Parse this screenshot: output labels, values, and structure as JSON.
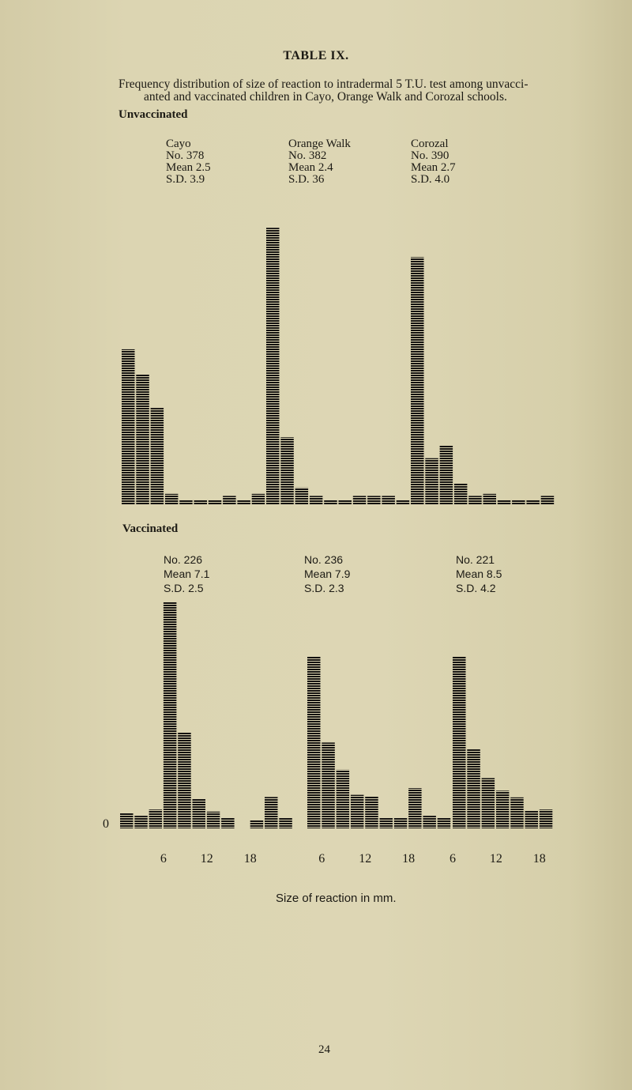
{
  "title": "TABLE IX.",
  "caption": {
    "line1": "Frequency distribution of size of reaction to intradermal 5 T.U. test among unvacci-",
    "line2": "anted and vaccinated children in Cayo, Orange Walk and Corozal schools."
  },
  "sections": {
    "unvaccinated": "Unvaccinated",
    "vaccinated": "Vaccinated"
  },
  "unvaccinated_panels": [
    {
      "name": "Cayo",
      "no": "No. 378",
      "mean": "Mean 2.5",
      "sd": "S.D. 3.9"
    },
    {
      "name": "Orange Walk",
      "no": "No. 382",
      "mean": "Mean 2.4",
      "sd": "S.D. 36"
    },
    {
      "name": "Corozal",
      "no": "No. 390",
      "mean": "Mean 2.7",
      "sd": "S.D. 4.0"
    }
  ],
  "vaccinated_panels": [
    {
      "no": "No. 226",
      "mean": "Mean 7.1",
      "sd": "S.D. 2.5"
    },
    {
      "no": "No. 236",
      "mean": "Mean 7.9",
      "sd": "S.D. 2.3"
    },
    {
      "no": "No. 221",
      "mean": "Mean 8.5",
      "sd": "S.D. 4.2"
    }
  ],
  "y_zero_label": "0",
  "tick_labels": [
    "6",
    "12",
    "18"
  ],
  "xlabel": "Size of reaction in mm.",
  "page_number": "24",
  "colors": {
    "bar": "#141210",
    "paper": "#dcd5b2"
  },
  "chart_data": [
    {
      "type": "bar",
      "group": "Unvaccinated",
      "panel": "Cayo",
      "bin_width_mm": 2,
      "bin_start_mm": [
        0,
        2,
        4,
        6,
        8,
        10,
        12,
        14,
        16,
        18
      ],
      "values_pct": [
        37,
        31,
        23,
        2.5,
        1,
        1,
        1,
        2,
        1,
        2.5
      ],
      "ticks": []
    },
    {
      "type": "bar",
      "group": "Unvaccinated",
      "panel": "Orange Walk",
      "bin_width_mm": 2,
      "bin_start_mm": [
        0,
        2,
        4,
        6,
        8,
        10,
        12,
        14,
        16,
        18
      ],
      "values_pct": [
        66,
        16,
        4,
        2,
        1,
        1,
        2,
        2,
        2,
        1
      ],
      "ticks": []
    },
    {
      "type": "bar",
      "group": "Unvaccinated",
      "panel": "Corozal",
      "bin_width_mm": 2,
      "bin_start_mm": [
        0,
        2,
        4,
        6,
        8,
        10,
        12,
        14,
        16,
        18
      ],
      "values_pct": [
        59,
        11,
        14,
        5,
        2,
        2.5,
        1,
        1,
        1,
        2
      ],
      "ticks": []
    },
    {
      "type": "bar",
      "group": "Vaccinated",
      "panel": "1",
      "bin_width_mm": 2,
      "bin_start_mm": [
        0,
        2,
        4,
        6,
        8,
        10,
        12,
        14,
        16,
        18,
        20,
        22
      ],
      "values_pct": [
        3.6,
        3,
        4.5,
        54,
        23,
        7,
        4,
        2.6,
        0,
        2,
        7.5,
        2.5
      ],
      "ticks": [
        6,
        12,
        18
      ]
    },
    {
      "type": "bar",
      "group": "Vaccinated",
      "panel": "2",
      "bin_width_mm": 2,
      "bin_start_mm": [
        4,
        6,
        8,
        10,
        12,
        14,
        16,
        18,
        20,
        22
      ],
      "values_pct": [
        41,
        20.5,
        14,
        8,
        7.7,
        2.6,
        2.6,
        9.6,
        3,
        2.6
      ],
      "ticks": [
        6,
        12,
        18
      ]
    },
    {
      "type": "bar",
      "group": "Vaccinated",
      "panel": "3",
      "bin_width_mm": 2,
      "bin_start_mm": [
        6,
        8,
        10,
        12,
        14,
        16,
        18
      ],
      "values_pct": [
        41,
        19,
        12,
        9,
        7.4,
        4.3,
        4.5
      ],
      "ticks": [
        6,
        12,
        18
      ]
    }
  ]
}
